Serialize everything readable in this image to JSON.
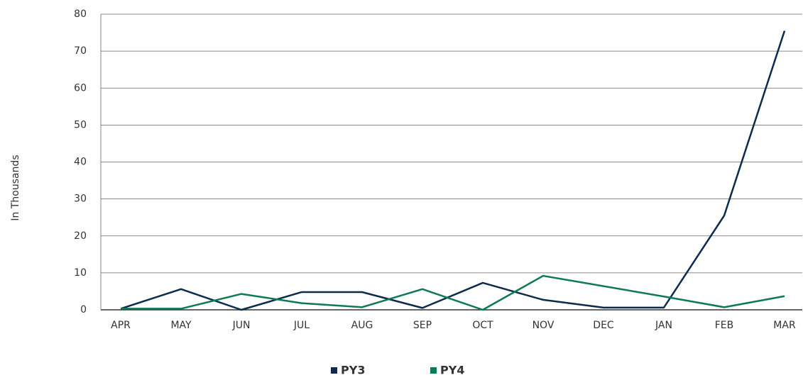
{
  "chart_data": {
    "type": "line",
    "y_label": "In Thousands",
    "categories": [
      "APR",
      "MAY",
      "JUN",
      "JUL",
      "AUG",
      "SEP",
      "OCT",
      "NOV",
      "DEC",
      "JAN",
      "FEB",
      "MAR"
    ],
    "series": [
      {
        "name": "PY3",
        "color": "#0d2b4e",
        "values": [
          0.3,
          5.6,
          0,
          4.8,
          4.8,
          0.5,
          7.3,
          2.7,
          0.6,
          0.6,
          25.5,
          75.5
        ]
      },
      {
        "name": "PY4",
        "color": "#0e7a55",
        "values": [
          0.3,
          0.3,
          4.3,
          1.8,
          0.7,
          5.6,
          0,
          9.2,
          6.4,
          3.6,
          0.7,
          3.7
        ]
      }
    ],
    "ylim": [
      0,
      80
    ],
    "yticks": [
      0,
      10,
      20,
      30,
      40,
      50,
      60,
      70,
      80
    ],
    "grid": true,
    "legend": "bottom"
  }
}
